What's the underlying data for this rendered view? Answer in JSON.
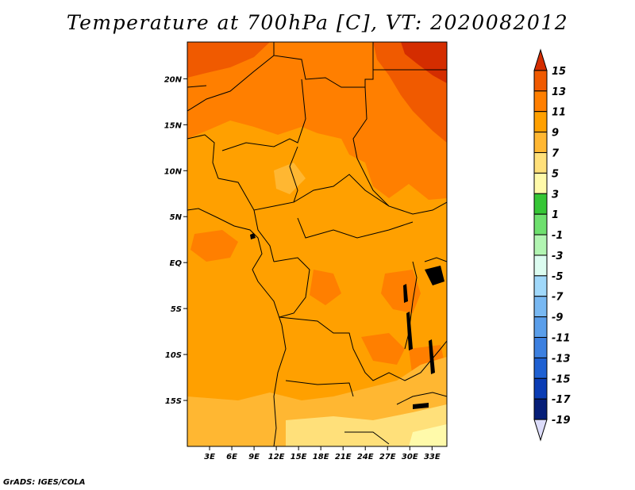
{
  "title": "Temperature at 700hPa [C], VT: 2020082012",
  "credit": "GrADS: IGES/COLA",
  "map": {
    "lon_range": [
      0,
      35
    ],
    "lat_range": [
      -20,
      24
    ],
    "lon_ticks": [
      {
        "value": 3,
        "label": "3E"
      },
      {
        "value": 6,
        "label": "6E"
      },
      {
        "value": 9,
        "label": "9E"
      },
      {
        "value": 12,
        "label": "12E"
      },
      {
        "value": 15,
        "label": "15E"
      },
      {
        "value": 18,
        "label": "18E"
      },
      {
        "value": 21,
        "label": "21E"
      },
      {
        "value": 24,
        "label": "24E"
      },
      {
        "value": 27,
        "label": "27E"
      },
      {
        "value": 30,
        "label": "30E"
      },
      {
        "value": 33,
        "label": "33E"
      }
    ],
    "lat_ticks": [
      {
        "value": 20,
        "label": "20N"
      },
      {
        "value": 15,
        "label": "15N"
      },
      {
        "value": 10,
        "label": "10N"
      },
      {
        "value": 5,
        "label": "5N"
      },
      {
        "value": 0,
        "label": "EQ"
      },
      {
        "value": -5,
        "label": "5S"
      },
      {
        "value": -10,
        "label": "10S"
      },
      {
        "value": -15,
        "label": "15S"
      }
    ]
  },
  "colorbar": {
    "levels": [
      "15",
      "13",
      "11",
      "9",
      "7",
      "5",
      "3",
      "1",
      "-1",
      "-3",
      "-5",
      "-7",
      "-9",
      "-11",
      "-13",
      "-15",
      "-17",
      "-19"
    ],
    "colors": [
      "#d42d00",
      "#f05a00",
      "#ff7f00",
      "#ffa000",
      "#ffb732",
      "#ffe07a",
      "#fffaaa",
      "#36c636",
      "#6ee06e",
      "#b2f5b2",
      "#dcfcf0",
      "#a0d8fa",
      "#78b8f2",
      "#5a9eea",
      "#3c80e0",
      "#1e60d2",
      "#0a3cb4",
      "#061e78",
      "#dcdcfa"
    ]
  }
}
